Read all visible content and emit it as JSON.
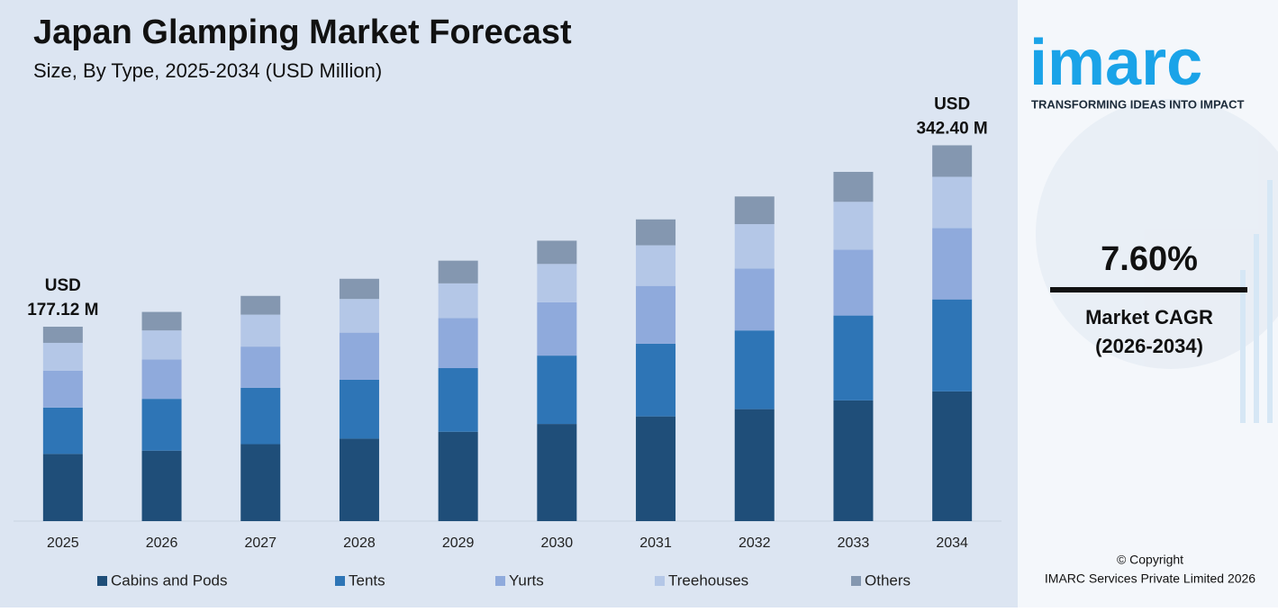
{
  "chart_data": {
    "type": "stacked-bar",
    "title": "Japan Glamping Market Forecast",
    "subtitle": "Size, By Type, 2025-2034 (USD Million)",
    "categories": [
      "2025",
      "2026",
      "2027",
      "2028",
      "2029",
      "2030",
      "2031",
      "2032",
      "2033",
      "2034"
    ],
    "series": [
      {
        "name": "Cabins and Pods",
        "color": "#1f4e79",
        "values": [
          61.2,
          64.2,
          70.1,
          75.1,
          81.4,
          88.5,
          95.4,
          102.0,
          110.0,
          118.2
        ]
      },
      {
        "name": "Tents",
        "color": "#2e75b6",
        "values": [
          42.2,
          47.2,
          51.3,
          53.7,
          58.0,
          62.3,
          66.2,
          71.7,
          77.3,
          83.8
        ]
      },
      {
        "name": "Yurts",
        "color": "#8faadc",
        "values": [
          33.7,
          35.9,
          37.6,
          42.9,
          45.5,
          48.6,
          52.7,
          56.5,
          60.0,
          64.9
        ]
      },
      {
        "name": "Treehouses",
        "color": "#b4c7e7",
        "values": [
          25.3,
          26.4,
          29.1,
          30.7,
          31.7,
          34.9,
          37.0,
          40.4,
          43.6,
          46.8
        ]
      },
      {
        "name": "Others",
        "color": "#8497b0",
        "values": [
          14.72,
          16.9,
          17.1,
          18.4,
          20.7,
          21.2,
          23.6,
          25.2,
          27.3,
          28.7
        ]
      }
    ],
    "annotations": [
      {
        "x": "2025",
        "value": 177.12,
        "lines": [
          "USD",
          "177.12 M"
        ]
      },
      {
        "x": "2034",
        "value": 342.4,
        "lines": [
          "USD",
          "342.40 M"
        ]
      }
    ],
    "ylim": [
      0,
      360
    ],
    "grid": false,
    "legend": "bottom"
  },
  "sidebar": {
    "logo": "imarc",
    "tagline": "TRANSFORMING IDEAS INTO IMPACT",
    "cagr": "7.60%",
    "cagr_label": [
      "Market CAGR",
      "(2026-2034)"
    ],
    "copyright": [
      "© Copyright",
      "IMARC Services Private Limited 2026"
    ]
  }
}
